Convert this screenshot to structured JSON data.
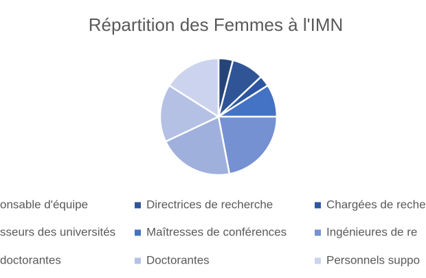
{
  "chart_data": {
    "type": "pie",
    "title": "Répartition des Femmes à l'IMN",
    "categories": [
      "onsable d'équipe",
      "Directrices de recherche",
      "Chargées de reche",
      "sseurs des universités",
      "Maîtresses de conférences",
      "Ingénieures de re",
      "doctorantes",
      "Doctorantes",
      "Personnels suppo"
    ],
    "values": [
      4,
      9,
      3,
      0,
      9,
      22,
      21,
      16,
      16
    ],
    "colors": [
      "#264478",
      "#2f5597",
      "#2e56a0",
      "#3a63b5",
      "#4472c4",
      "#7591d1",
      "#9fb0dd",
      "#b4c1e5",
      "#cbd3ee"
    ],
    "legend": "bottom"
  }
}
